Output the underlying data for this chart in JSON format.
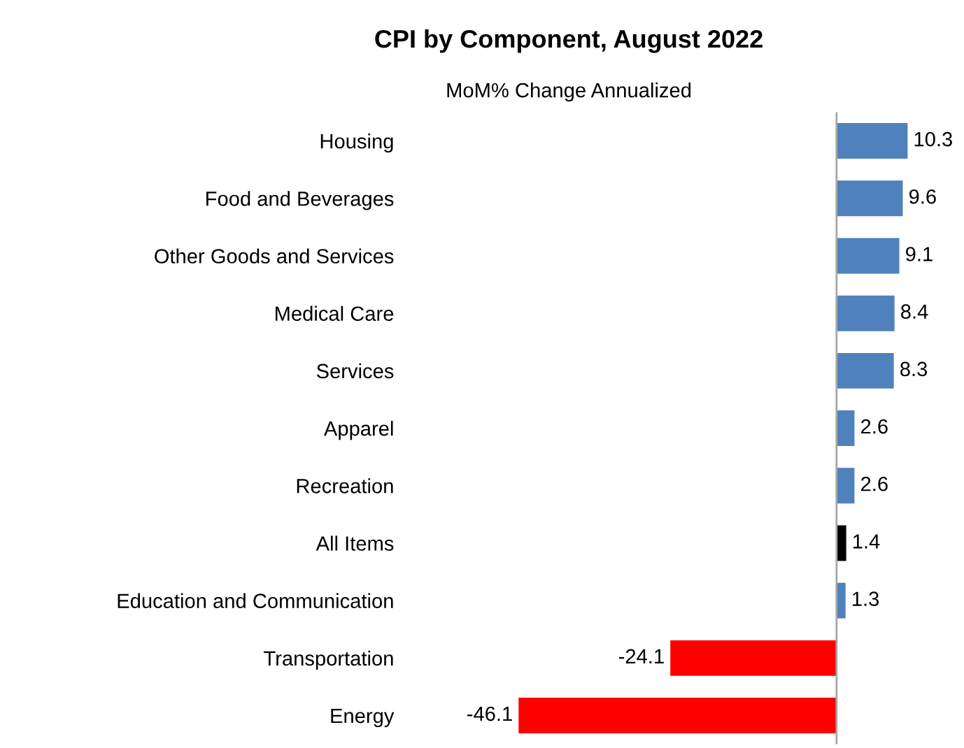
{
  "chart_data": {
    "type": "bar",
    "orientation": "horizontal",
    "title": "CPI by Component, August 2022",
    "subtitle": "MoM% Change Annualized",
    "categories": [
      "Housing",
      "Food and Beverages",
      "Other Goods and Services",
      "Medical Care",
      "Services",
      "Apparel",
      "Recreation",
      "All Items",
      "Education and Communication",
      "Transportation",
      "Energy"
    ],
    "values": [
      10.3,
      9.6,
      9.1,
      8.4,
      8.3,
      2.6,
      2.6,
      1.4,
      1.3,
      -24.1,
      -46.1
    ],
    "colors": [
      "#4f81bd",
      "#4f81bd",
      "#4f81bd",
      "#4f81bd",
      "#4f81bd",
      "#4f81bd",
      "#4f81bd",
      "#000000",
      "#4f81bd",
      "#ff0000",
      "#ff0000"
    ],
    "tick_labels": "y",
    "data_labels": true
  }
}
